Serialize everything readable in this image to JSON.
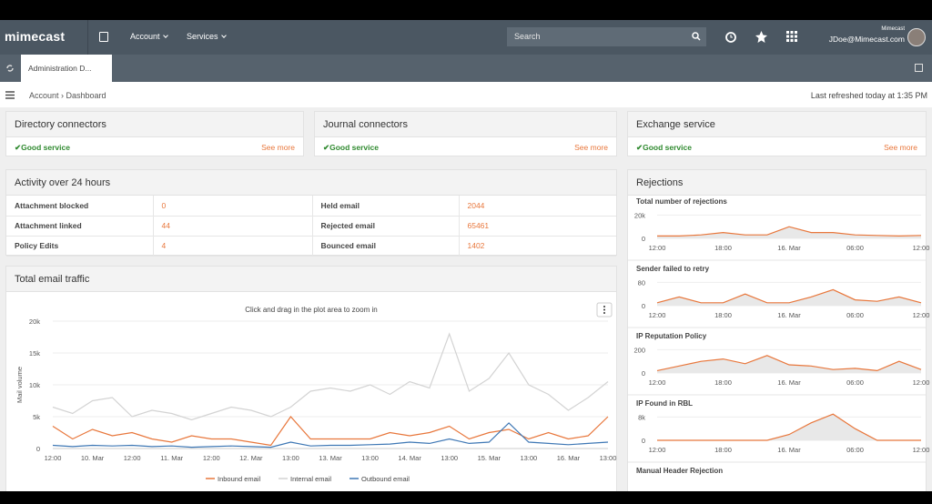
{
  "header": {
    "logo": "mimecast",
    "nav": [
      "Account",
      "Services"
    ],
    "search": "Search",
    "user_org": "Mimecast",
    "user_email": "JDoe@Mimecast.com"
  },
  "tabs": [
    "Administration D..."
  ],
  "breadcrumb": [
    "Account",
    "Dashboard"
  ],
  "last_refreshed": "Last refreshed today at 1:35 PM",
  "status_panels": [
    {
      "title": "Directory connectors",
      "status": "Good service",
      "link": "See more"
    },
    {
      "title": "Journal connectors",
      "status": "Good service",
      "link": "See more"
    },
    {
      "title": "Exchange service",
      "status": "Good service",
      "link": "See more"
    }
  ],
  "activity": {
    "title": "Activity over 24 hours",
    "rows": [
      [
        "Attachment blocked",
        0,
        "Held email",
        2044
      ],
      [
        "Attachment linked",
        44,
        "Rejected email",
        65461
      ],
      [
        "Policy Edits",
        4,
        "Bounced email",
        1402
      ]
    ]
  },
  "rejections_title": "Rejections",
  "chart_data": [
    {
      "type": "line",
      "title": "Total email traffic",
      "subtitle": "Click and drag in the plot area to zoom in",
      "y_label": "Mail volume",
      "categories": [
        "12:00",
        null,
        "10. Mar",
        null,
        "12:00",
        null,
        "11. Mar",
        null,
        "12:00",
        null,
        "12. Mar",
        null,
        "13:00",
        null,
        "13. Mar",
        null,
        "13:00",
        null,
        "14. Mar",
        null,
        "13:00",
        null,
        "15. Mar",
        null,
        "13:00",
        null,
        "16. Mar",
        null,
        "13:00"
      ],
      "series": [
        {
          "name": "Inbound email",
          "color": "#e8773c",
          "values": [
            3500,
            1500,
            3000,
            2000,
            2500,
            1500,
            1000,
            2000,
            1500,
            1500,
            1000,
            500,
            5000,
            1500,
            1500,
            1500,
            1500,
            2500,
            2000,
            2500,
            3500,
            1500,
            2500,
            3000,
            1500,
            2500,
            1500,
            2000,
            5000
          ]
        },
        {
          "name": "Internal email",
          "color": "#d3d3d3",
          "values": [
            6500,
            5500,
            7500,
            8000,
            5000,
            6000,
            5500,
            4500,
            5500,
            6500,
            6000,
            5000,
            6500,
            9000,
            9500,
            9000,
            10000,
            8500,
            10500,
            9500,
            18000,
            9000,
            11000,
            15000,
            10000,
            8500,
            6000,
            8000,
            10500
          ]
        },
        {
          "name": "Outbound email",
          "color": "#3f78b5",
          "values": [
            500,
            300,
            500,
            400,
            500,
            300,
            400,
            200,
            300,
            400,
            300,
            200,
            1000,
            400,
            500,
            500,
            600,
            700,
            1000,
            800,
            1500,
            800,
            1000,
            4000,
            1000,
            800,
            600,
            800,
            1000
          ]
        }
      ],
      "ylim": [
        0,
        20000
      ],
      "yticks": [
        0,
        {
          "value": 5000,
          "label": "5k"
        },
        {
          "value": 10000,
          "label": "10k"
        },
        {
          "value": 15000,
          "label": "15k"
        },
        {
          "value": 20000,
          "label": "20k"
        }
      ]
    },
    {
      "type": "area",
      "title": "Total number of rejections",
      "color": "#e8773c",
      "categories": [
        "12:00",
        null,
        null,
        "18:00",
        null,
        null,
        "16. Mar",
        null,
        null,
        "06:00",
        null,
        null,
        "12:00"
      ],
      "values": [
        2000,
        2000,
        3000,
        5000,
        3000,
        3000,
        10000,
        5000,
        5000,
        3000,
        2500,
        2000,
        2500
      ],
      "ylim": [
        0,
        25000
      ],
      "yticks": [
        0,
        {
          "value": 20000,
          "label": "20k"
        }
      ]
    },
    {
      "type": "area",
      "title": "Sender failed to retry",
      "color": "#e8773c",
      "categories": [
        "12:00",
        null,
        null,
        "18:00",
        null,
        null,
        "16. Mar",
        null,
        null,
        "06:00",
        null,
        null,
        "12:00"
      ],
      "values": [
        10,
        30,
        10,
        10,
        40,
        10,
        10,
        30,
        55,
        20,
        15,
        30,
        10
      ],
      "ylim": [
        0,
        100
      ],
      "yticks": [
        0,
        80
      ]
    },
    {
      "type": "area",
      "title": "IP Reputation Policy",
      "color": "#e8773c",
      "categories": [
        "12:00",
        null,
        null,
        "18:00",
        null,
        null,
        "16. Mar",
        null,
        null,
        "06:00",
        null,
        null,
        "12:00"
      ],
      "values": [
        20,
        60,
        100,
        120,
        80,
        150,
        70,
        60,
        30,
        40,
        20,
        100,
        30
      ],
      "ylim": [
        0,
        250
      ],
      "yticks": [
        0,
        200
      ]
    },
    {
      "type": "area",
      "title": "IP Found in RBL",
      "color": "#e8773c",
      "categories": [
        "12:00",
        null,
        null,
        "18:00",
        null,
        null,
        "16. Mar",
        null,
        null,
        "06:00",
        null,
        null,
        "12:00"
      ],
      "values": [
        0,
        0,
        0,
        0,
        0,
        0,
        2000,
        6000,
        9000,
        4000,
        0,
        0,
        0
      ],
      "ylim": [
        0,
        10000
      ],
      "yticks": [
        0,
        {
          "value": 8000,
          "label": "8k"
        }
      ]
    },
    {
      "type": "area",
      "title": "Manual Header Rejection"
    }
  ]
}
